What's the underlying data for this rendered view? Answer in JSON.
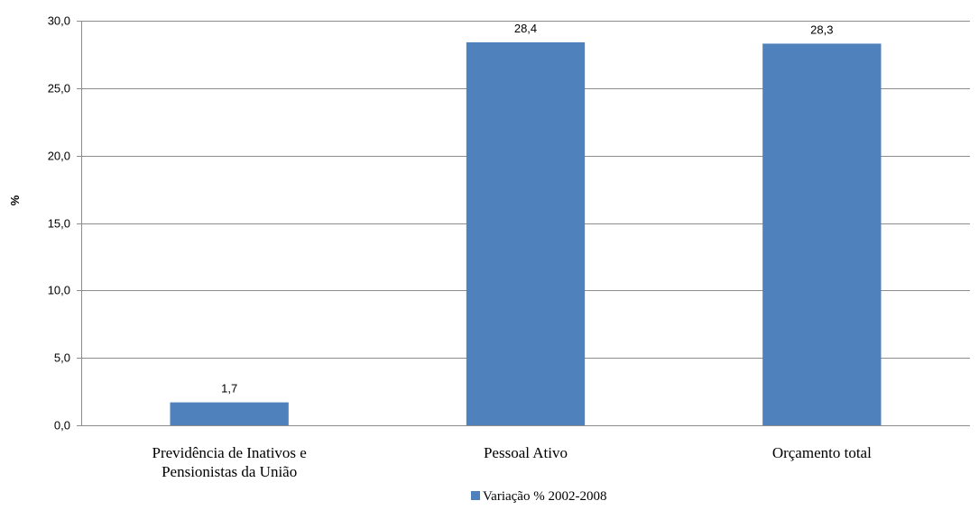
{
  "chart_data": {
    "type": "bar",
    "categories": [
      [
        "Previdência de Inativos e",
        "Pensionistas da União"
      ],
      [
        "Pessoal Ativo"
      ],
      [
        "Orçamento total"
      ]
    ],
    "series": [
      {
        "name": "Variação % 2002-2008",
        "color": "#4f81bd",
        "values": [
          1.7,
          28.4,
          28.3
        ],
        "data_labels": [
          "1,7",
          "28,4",
          "28,3"
        ]
      }
    ],
    "ylabel": "%",
    "xlabel": "",
    "ylim": [
      0,
      30
    ],
    "yticks": [
      0,
      5,
      10,
      15,
      20,
      25,
      30
    ],
    "ytick_labels": [
      "0,0",
      "5,0",
      "10,0",
      "15,0",
      "20,0",
      "25,0",
      "30,0"
    ],
    "grid": true,
    "legend_position": "bottom"
  }
}
